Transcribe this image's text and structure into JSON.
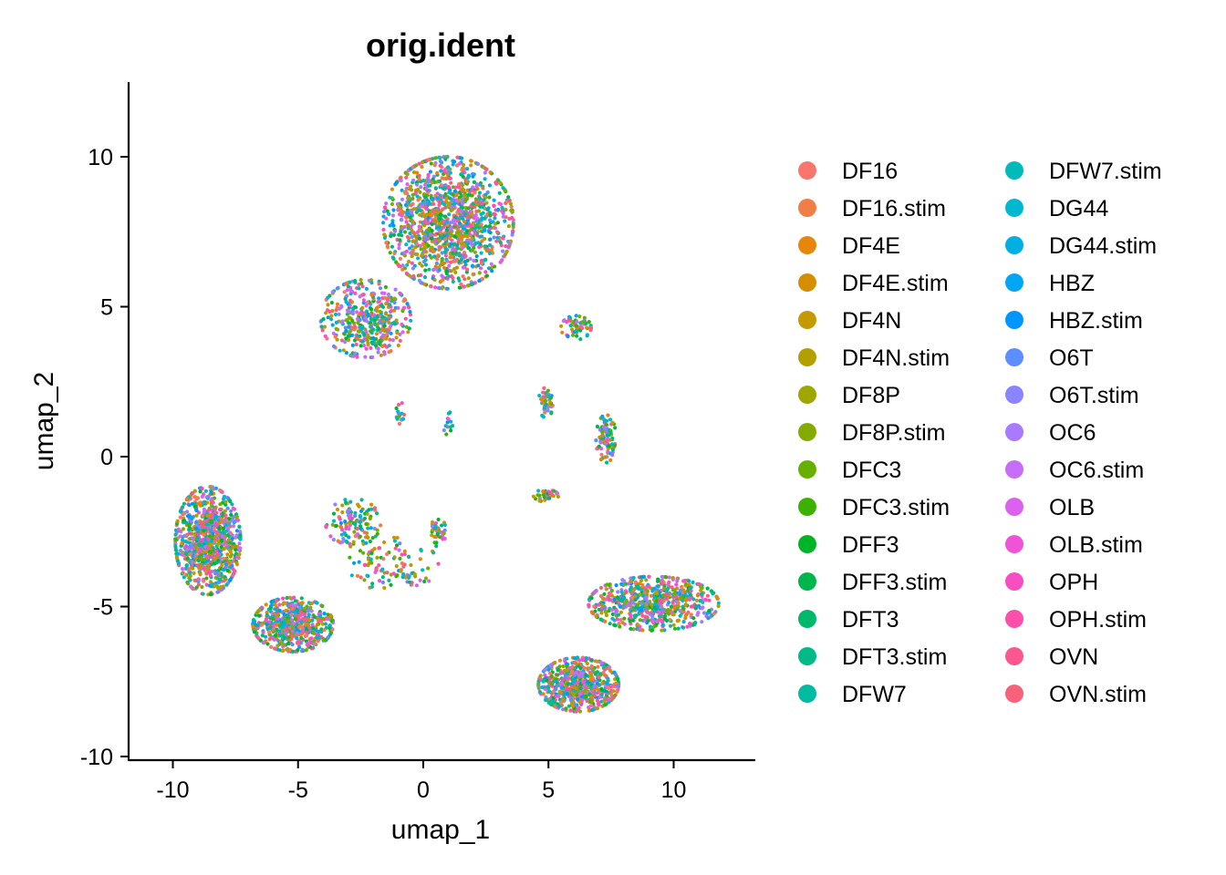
{
  "chart_data": {
    "type": "scatter",
    "title": "orig.ident",
    "xlabel": "umap_1",
    "ylabel": "umap_2",
    "xlim": [
      -11.5,
      13.3
    ],
    "ylim": [
      -10.2,
      12.5
    ],
    "xticks": [
      -10,
      -5,
      0,
      5,
      10
    ],
    "yticks": [
      -10,
      -5,
      0,
      5,
      10
    ],
    "grid": false,
    "legend_position": "right",
    "series": [
      {
        "name": "DF16",
        "color": "#F8766D"
      },
      {
        "name": "DF16.stim",
        "color": "#F07E46"
      },
      {
        "name": "DF4E",
        "color": "#E6860A"
      },
      {
        "name": "DF4E.stim",
        "color": "#D58E00"
      },
      {
        "name": "DF4N",
        "color": "#C59900"
      },
      {
        "name": "DF4N.stim",
        "color": "#B29F00"
      },
      {
        "name": "DF8P",
        "color": "#9DA700"
      },
      {
        "name": "DF8P.stim",
        "color": "#84AC00"
      },
      {
        "name": "DFC3",
        "color": "#68B000"
      },
      {
        "name": "DFC3.stim",
        "color": "#3BB200"
      },
      {
        "name": "DFF3",
        "color": "#00B427"
      },
      {
        "name": "DFF3.stim",
        "color": "#00B64C"
      },
      {
        "name": "DFT3",
        "color": "#00B86A"
      },
      {
        "name": "DFT3.stim",
        "color": "#00BA87"
      },
      {
        "name": "DFW7",
        "color": "#00BBA2"
      },
      {
        "name": "DFW7.stim",
        "color": "#00BBBA"
      },
      {
        "name": "DG44",
        "color": "#00B8D0"
      },
      {
        "name": "DG44.stim",
        "color": "#00B0E3"
      },
      {
        "name": "HBZ",
        "color": "#00A5F4"
      },
      {
        "name": "HBZ.stim",
        "color": "#0096FF"
      },
      {
        "name": "O6T",
        "color": "#5D8EFF"
      },
      {
        "name": "O6T.stim",
        "color": "#8A84FF"
      },
      {
        "name": "OC6",
        "color": "#A979FF"
      },
      {
        "name": "OC6.stim",
        "color": "#C66EF8"
      },
      {
        "name": "OLB",
        "color": "#DB61EE"
      },
      {
        "name": "OLB.stim",
        "color": "#EF54D8"
      },
      {
        "name": "OPH",
        "color": "#F94DC4"
      },
      {
        "name": "OPH.stim",
        "color": "#FC4FAB"
      },
      {
        "name": "OVN",
        "color": "#FB5890"
      },
      {
        "name": "OVN.stim",
        "color": "#F6627A"
      }
    ],
    "clusters": [
      {
        "center": [
          1.0,
          7.8
        ],
        "spread": [
          2.6,
          2.2
        ],
        "count": 1300
      },
      {
        "center": [
          -2.3,
          4.6
        ],
        "spread": [
          1.8,
          1.3
        ],
        "count": 420
      },
      {
        "center": [
          -8.6,
          -2.8
        ],
        "spread": [
          1.3,
          1.8
        ],
        "count": 900
      },
      {
        "center": [
          -5.2,
          -5.6
        ],
        "spread": [
          1.6,
          0.9
        ],
        "count": 600
      },
      {
        "center": [
          -2.8,
          -2.2
        ],
        "spread": [
          1.1,
          0.8
        ],
        "count": 120
      },
      {
        "center": [
          -1.2,
          -3.6
        ],
        "spread": [
          1.8,
          0.9
        ],
        "count": 110
      },
      {
        "center": [
          0.6,
          -2.5
        ],
        "spread": [
          0.3,
          0.5
        ],
        "count": 35
      },
      {
        "center": [
          6.2,
          -7.6
        ],
        "spread": [
          1.6,
          0.9
        ],
        "count": 650
      },
      {
        "center": [
          9.2,
          -4.9
        ],
        "spread": [
          2.6,
          0.9
        ],
        "count": 650
      },
      {
        "center": [
          6.1,
          4.3
        ],
        "spread": [
          0.6,
          0.4
        ],
        "count": 60
      },
      {
        "center": [
          7.3,
          0.6
        ],
        "spread": [
          0.4,
          0.8
        ],
        "count": 90
      },
      {
        "center": [
          4.9,
          1.8
        ],
        "spread": [
          0.3,
          0.5
        ],
        "count": 45
      },
      {
        "center": [
          4.9,
          -1.3
        ],
        "spread": [
          0.5,
          0.2
        ],
        "count": 35
      },
      {
        "center": [
          -0.9,
          1.4
        ],
        "spread": [
          0.2,
          0.4
        ],
        "count": 15
      },
      {
        "center": [
          1.0,
          1.1
        ],
        "spread": [
          0.2,
          0.6
        ],
        "count": 14
      }
    ]
  }
}
